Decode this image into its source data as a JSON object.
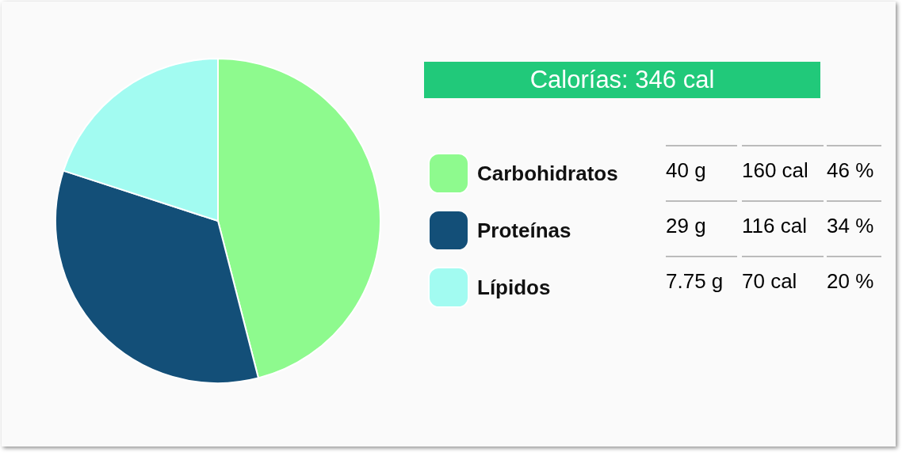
{
  "chart_data": {
    "type": "pie",
    "title": "Calorías: 346 cal",
    "categories": [
      "Carbohidratos",
      "Proteínas",
      "Lípidos"
    ],
    "values": [
      46,
      34,
      20
    ],
    "colors": [
      "#8efa8e",
      "#134f78",
      "#a2fbf1"
    ],
    "value_labels": [
      "46 %",
      "34 %",
      "20 %"
    ],
    "annotations": [
      "40 g",
      "160 cal",
      "29 g",
      "116 cal",
      "7.75 g",
      "70 cal"
    ],
    "legend": "right"
  }
}
